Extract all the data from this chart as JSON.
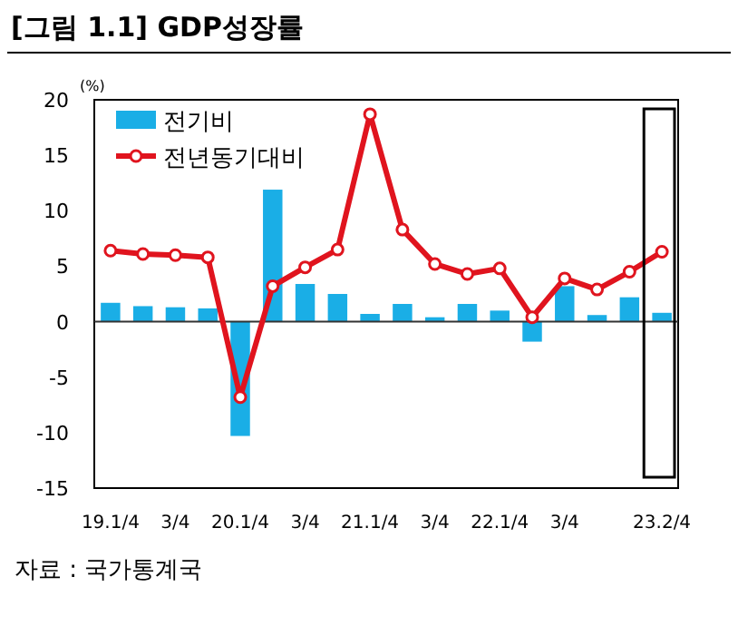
{
  "chart_data": {
    "type": "bar",
    "title": "[그림 1.1] GDP성장률",
    "ylabel": "(%)",
    "annotations": [
      "자료 : 국가통계국"
    ],
    "categories": [
      "19.1/4",
      null,
      "3/4",
      null,
      "20.1/4",
      null,
      "3/4",
      null,
      "21.1/4",
      null,
      "3/4",
      null,
      "22.1/4",
      null,
      "3/4",
      null,
      null,
      "23.2/4"
    ],
    "series": [
      {
        "name": "전기비",
        "color": "#1aaee6",
        "values": [
          1.7,
          1.4,
          1.3,
          1.2,
          -10.3,
          11.9,
          3.4,
          2.5,
          0.7,
          1.6,
          0.4,
          1.6,
          1.0,
          -1.8,
          3.2,
          0.6,
          2.2,
          0.8
        ]
      },
      {
        "name": "전년동기대비",
        "type": "line",
        "color": "#e0141e",
        "marker": "circle",
        "values": [
          6.4,
          6.1,
          6.0,
          5.8,
          -6.8,
          3.2,
          4.9,
          6.5,
          18.7,
          8.3,
          5.2,
          4.3,
          4.8,
          0.4,
          3.9,
          2.9,
          4.5,
          6.3
        ]
      }
    ],
    "ylim": [
      -15,
      20
    ],
    "yticks": [
      -15,
      -10,
      -5,
      0,
      5,
      10,
      15,
      20
    ],
    "ref_lines": [
      {
        "axis": "y",
        "value": 0,
        "color": "#333333"
      }
    ],
    "grid": false,
    "legend": "top left"
  }
}
